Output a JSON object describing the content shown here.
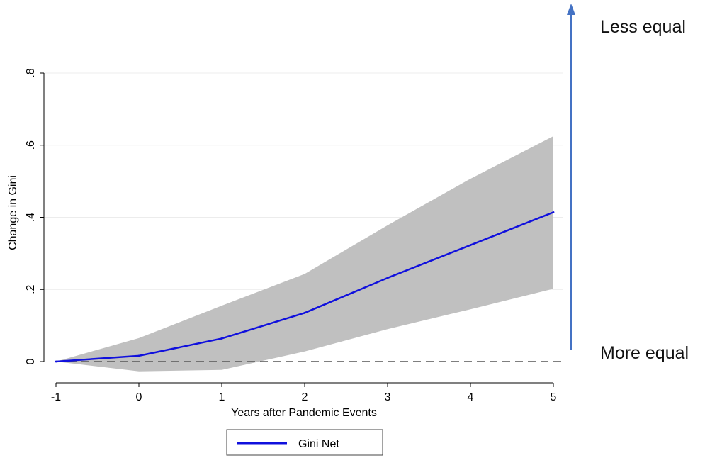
{
  "chart_data": {
    "type": "line",
    "title": "",
    "xlabel": "Years after Pandemic Events",
    "ylabel": "Change in Gini",
    "x": [
      -1,
      0,
      1,
      2,
      3,
      4,
      5
    ],
    "xticks": [
      "-1",
      "0",
      "1",
      "2",
      "3",
      "4",
      "5"
    ],
    "yticks": [
      "0",
      ".2",
      ".4",
      ".6",
      ".8"
    ],
    "ytick_values": [
      0,
      0.2,
      0.4,
      0.6,
      0.8
    ],
    "xlim": [
      -1,
      5
    ],
    "ylim": [
      0,
      0.8
    ],
    "series": [
      {
        "name": "Gini Net",
        "values": [
          0,
          0.016,
          0.064,
          0.135,
          0.232,
          0.323,
          0.414
        ],
        "color": "#1010dd"
      }
    ],
    "confidence_band": {
      "lower": [
        0,
        -0.027,
        -0.023,
        0.028,
        0.09,
        0.145,
        0.202
      ],
      "upper": [
        0,
        0.065,
        0.155,
        0.243,
        0.378,
        0.507,
        0.625
      ],
      "color": "#c0c0c0"
    },
    "reference_line": {
      "y": 0,
      "style": "dashed",
      "color": "#555555"
    },
    "grid": true,
    "legend": {
      "position": "bottom",
      "entries": [
        "Gini Net"
      ]
    },
    "annotations": {
      "top_label": "Less equal",
      "bottom_label": "More equal",
      "arrow_color": "#4472c4"
    }
  }
}
